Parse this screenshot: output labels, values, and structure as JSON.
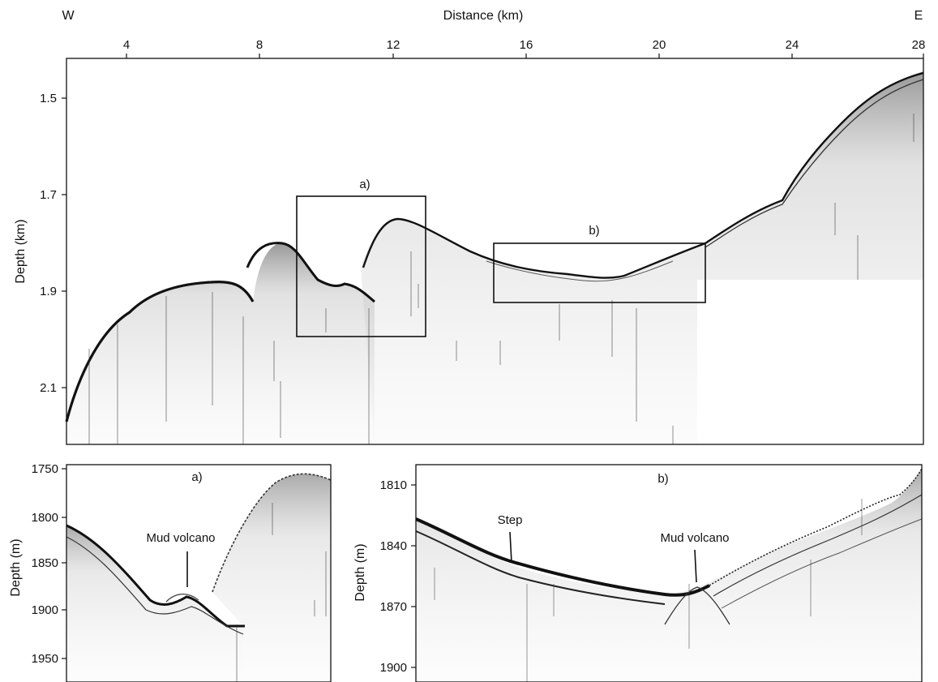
{
  "main_profile": {
    "west_label": "W",
    "east_label": "E",
    "x_axis_title": "Distance (km)",
    "y_axis_title": "Depth (km)",
    "x_ticks": [
      "4",
      "8",
      "12",
      "16",
      "20",
      "24",
      "28"
    ],
    "y_ticks": [
      "1.5",
      "1.7",
      "1.9",
      "2.1"
    ],
    "box_a_label": "a)",
    "box_b_label": "b)"
  },
  "inset_a": {
    "label": "a)",
    "y_axis_title": "Depth (m)",
    "y_ticks": [
      "1750",
      "1800",
      "1850",
      "1900",
      "1950"
    ],
    "annotation": "Mud volcano"
  },
  "inset_b": {
    "label": "b)",
    "y_axis_title": "Depth (m)",
    "y_ticks": [
      "1810",
      "1840",
      "1870",
      "1900"
    ],
    "annotation_step": "Step",
    "annotation_mud_volcano": "Mud volcano"
  },
  "colors": {
    "reflector": "#111111",
    "background": "#ffffff",
    "frame": "#111111"
  }
}
